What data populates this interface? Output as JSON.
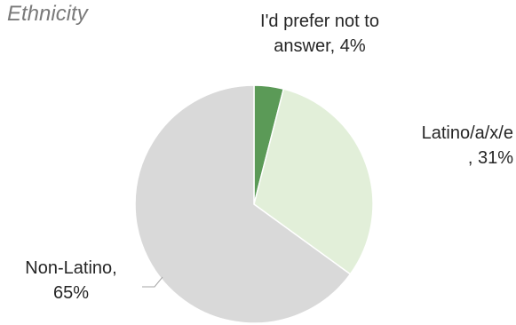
{
  "chart_data": {
    "type": "pie",
    "title": "Ethnicity",
    "categories": [
      "I'd prefer not to answer",
      "Latino/a/x/e",
      "Non-Latino"
    ],
    "values": [
      4,
      31,
      65
    ],
    "unit": "%",
    "colors": [
      "#5b9a57",
      "#e2efd9",
      "#d9d9d9"
    ],
    "labels": {
      "prefer_line1": "I'd prefer not to",
      "prefer_line2": "answer, 4%",
      "latino_line1": "Latino/a/x/e",
      "latino_line2": ", 31%",
      "non_line1": "Non-Latino,",
      "non_line2": "65%"
    }
  }
}
